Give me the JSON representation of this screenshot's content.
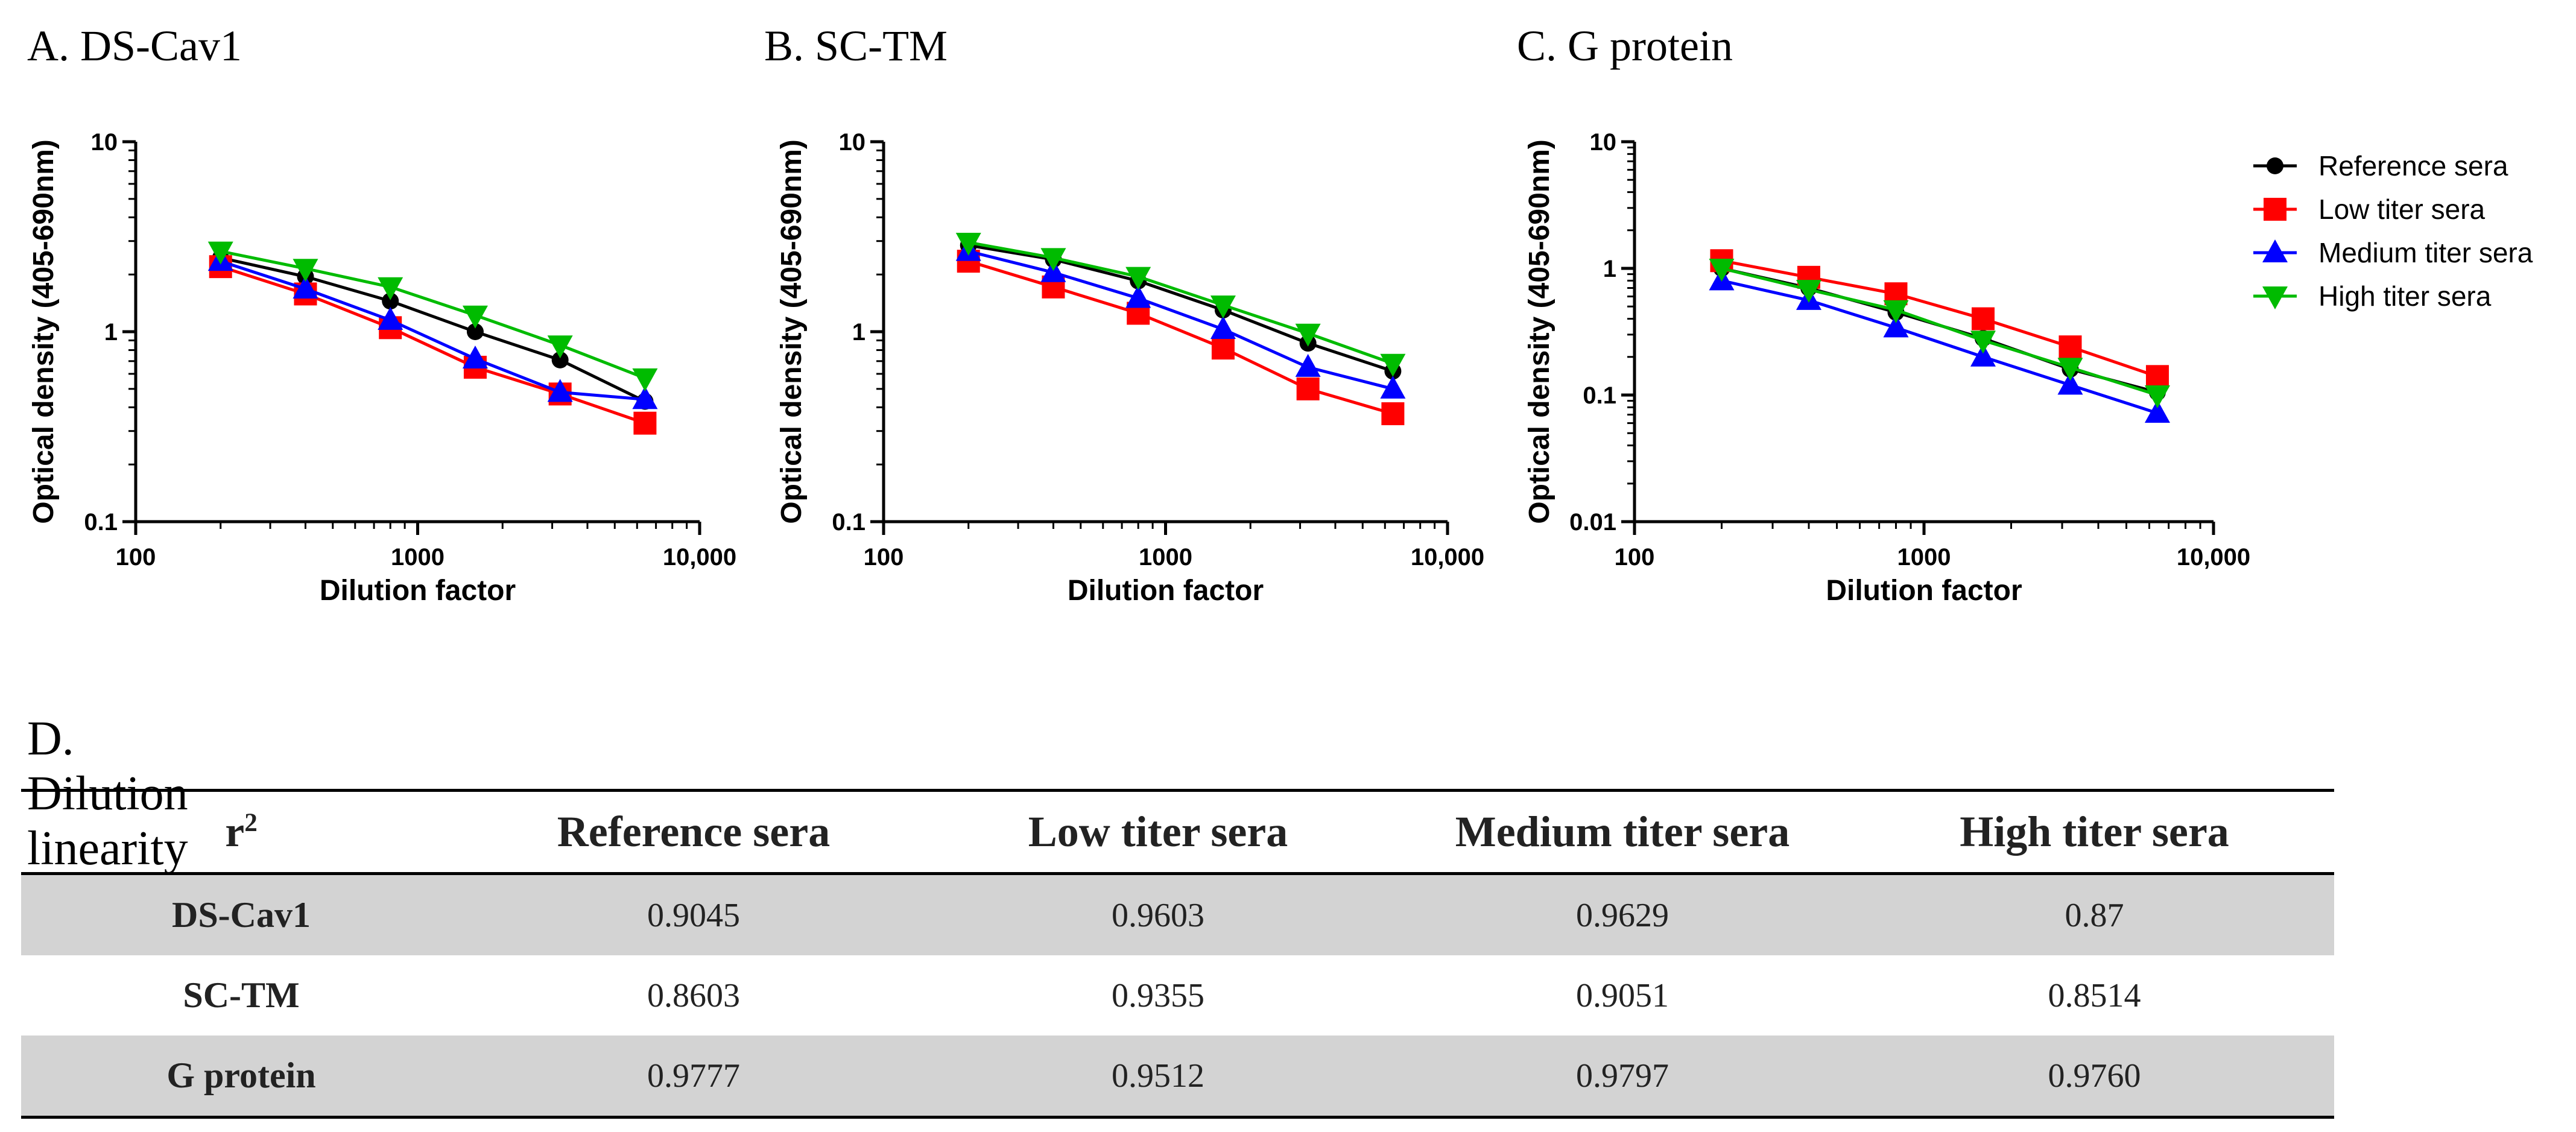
{
  "panels": [
    {
      "id": "A",
      "label": "A. DS-Cav1"
    },
    {
      "id": "B",
      "label": "B. SC-TM"
    },
    {
      "id": "C",
      "label": "C. G protein"
    }
  ],
  "chart_data": [
    {
      "type": "line",
      "title": "A. DS-Cav1",
      "xscale": "log",
      "yscale": "log",
      "xlabel": "Dilution factor",
      "ylabel": "Optical density (405-690nm)",
      "xlim": [
        100,
        10000
      ],
      "ylim": [
        0.1,
        10
      ],
      "xticks": [
        100,
        1000,
        10000
      ],
      "xtick_labels": [
        "100",
        "1000",
        "10,000"
      ],
      "yticks": [
        0.1,
        1,
        10
      ],
      "ytick_labels": [
        "0.1",
        "1",
        "10"
      ],
      "x": [
        200,
        400,
        800,
        1600,
        3200,
        6400
      ],
      "series": [
        {
          "name": "Reference sera",
          "color": "#000000",
          "marker": "circle",
          "values": [
            2.45,
            1.95,
            1.45,
            1.0,
            0.71,
            0.43
          ]
        },
        {
          "name": "Low titer sera",
          "color": "#ff0000",
          "marker": "square",
          "values": [
            2.2,
            1.58,
            1.05,
            0.65,
            0.47,
            0.33
          ]
        },
        {
          "name": "Medium titer sera",
          "color": "#0000ff",
          "marker": "triangle-up",
          "values": [
            2.35,
            1.68,
            1.15,
            0.72,
            0.48,
            0.44
          ]
        },
        {
          "name": "High titer sera",
          "color": "#00bb00",
          "marker": "triangle-down",
          "values": [
            2.65,
            2.15,
            1.72,
            1.22,
            0.85,
            0.57
          ]
        }
      ]
    },
    {
      "type": "line",
      "title": "B. SC-TM",
      "xscale": "log",
      "yscale": "log",
      "xlabel": "Dilution factor",
      "ylabel": "Optical density (405-690nm)",
      "xlim": [
        100,
        10000
      ],
      "ylim": [
        0.1,
        10
      ],
      "xticks": [
        100,
        1000,
        10000
      ],
      "xtick_labels": [
        "100",
        "1000",
        "10,000"
      ],
      "yticks": [
        0.1,
        1,
        10
      ],
      "ytick_labels": [
        "0.1",
        "1",
        "10"
      ],
      "x": [
        200,
        400,
        800,
        1600,
        3200,
        6400
      ],
      "series": [
        {
          "name": "Reference sera",
          "color": "#000000",
          "marker": "circle",
          "values": [
            2.85,
            2.4,
            1.85,
            1.3,
            0.87,
            0.62
          ]
        },
        {
          "name": "Low titer sera",
          "color": "#ff0000",
          "marker": "square",
          "values": [
            2.35,
            1.72,
            1.25,
            0.82,
            0.5,
            0.37
          ]
        },
        {
          "name": "Medium titer sera",
          "color": "#0000ff",
          "marker": "triangle-up",
          "values": [
            2.65,
            2.05,
            1.5,
            1.03,
            0.65,
            0.5
          ]
        },
        {
          "name": "High titer sera",
          "color": "#00bb00",
          "marker": "triangle-down",
          "values": [
            2.95,
            2.45,
            1.95,
            1.38,
            0.98,
            0.68
          ]
        }
      ]
    },
    {
      "type": "line",
      "title": "C. G protein",
      "xscale": "log",
      "yscale": "log",
      "xlabel": "Dilution factor",
      "ylabel": "Optical density (405-690nm)",
      "xlim": [
        100,
        10000
      ],
      "ylim": [
        0.01,
        10
      ],
      "xticks": [
        100,
        1000,
        10000
      ],
      "xtick_labels": [
        "100",
        "1000",
        "10,000"
      ],
      "yticks": [
        0.01,
        0.1,
        1,
        10
      ],
      "ytick_labels": [
        "0.01",
        "0.1",
        "1",
        "10"
      ],
      "x": [
        200,
        400,
        800,
        1600,
        3200,
        6400
      ],
      "series": [
        {
          "name": "Reference sera",
          "color": "#000000",
          "marker": "circle",
          "values": [
            1.0,
            0.7,
            0.45,
            0.28,
            0.16,
            0.105
          ]
        },
        {
          "name": "Low titer sera",
          "color": "#ff0000",
          "marker": "square",
          "values": [
            1.15,
            0.85,
            0.63,
            0.4,
            0.24,
            0.14
          ]
        },
        {
          "name": "Medium titer sera",
          "color": "#0000ff",
          "marker": "triangle-up",
          "values": [
            0.8,
            0.56,
            0.34,
            0.2,
            0.12,
            0.072
          ]
        },
        {
          "name": "High titer sera",
          "color": "#00bb00",
          "marker": "triangle-down",
          "values": [
            1.0,
            0.68,
            0.47,
            0.27,
            0.165,
            0.1
          ]
        }
      ]
    },
    {
      "type": "table",
      "title": "D. Dilution linearity",
      "columns": [
        "r2",
        "Reference sera",
        "Low titer sera",
        "Medium titer sera",
        "High titer sera"
      ],
      "rows": [
        {
          "name": "DS-Cav1",
          "values": [
            "0.9045",
            "0.9603",
            "0.9629",
            "0.87"
          ]
        },
        {
          "name": "SC-TM",
          "values": [
            "0.8603",
            "0.9355",
            "0.9051",
            "0.8514"
          ]
        },
        {
          "name": "G protein",
          "values": [
            "0.9777",
            "0.9512",
            "0.9797",
            "0.9760"
          ]
        }
      ]
    }
  ],
  "legend": {
    "entries": [
      {
        "label": "Reference sera",
        "color": "#000000",
        "marker": "circle"
      },
      {
        "label": "Low titer sera",
        "color": "#ff0000",
        "marker": "square"
      },
      {
        "label": "Medium titer sera",
        "color": "#0000ff",
        "marker": "triangle-up"
      },
      {
        "label": "High titer sera",
        "color": "#00bb00",
        "marker": "triangle-down"
      }
    ]
  },
  "table": {
    "title": "D. Dilution linearity",
    "header_symbol": "r",
    "header_superscript": "2",
    "columns": [
      "Reference sera",
      "Low titer sera",
      "Medium titer sera",
      "High titer sera"
    ],
    "rows": [
      {
        "name": "DS-Cav1",
        "values": [
          "0.9045",
          "0.9603",
          "0.9629",
          "0.87"
        ]
      },
      {
        "name": "SC-TM",
        "values": [
          "0.8603",
          "0.9355",
          "0.9051",
          "0.8514"
        ]
      },
      {
        "name": "G protein",
        "values": [
          "0.9777",
          "0.9512",
          "0.9797",
          "0.9760"
        ]
      }
    ]
  }
}
